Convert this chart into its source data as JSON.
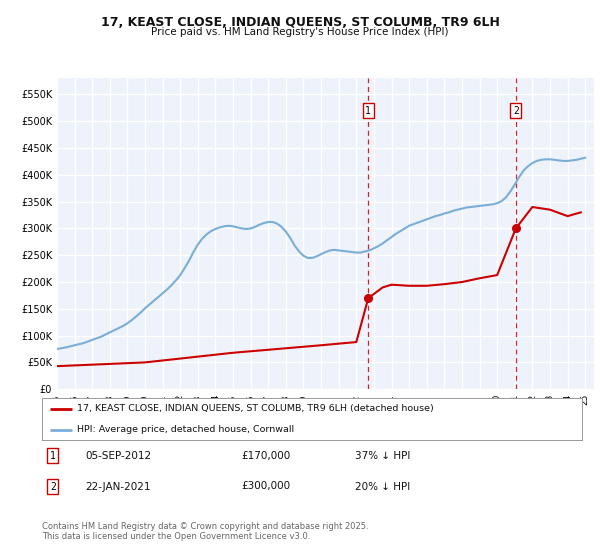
{
  "title": "17, KEAST CLOSE, INDIAN QUEENS, ST COLUMB, TR9 6LH",
  "subtitle": "Price paid vs. HM Land Registry's House Price Index (HPI)",
  "ylim": [
    0,
    580000
  ],
  "yticks": [
    0,
    50000,
    100000,
    150000,
    200000,
    250000,
    300000,
    350000,
    400000,
    450000,
    500000,
    550000
  ],
  "ytick_labels": [
    "£0",
    "£50K",
    "£100K",
    "£150K",
    "£200K",
    "£250K",
    "£300K",
    "£350K",
    "£400K",
    "£450K",
    "£500K",
    "£550K"
  ],
  "background_color": "#eef2fb",
  "grid_color": "#ffffff",
  "red_line_color": "#cc0000",
  "blue_line_color": "#7aaed6",
  "marker1_date_x": 2012.68,
  "marker1_price": 170000,
  "marker2_date_x": 2021.06,
  "marker2_price": 300000,
  "sale1_label": "05-SEP-2012",
  "sale1_price": "£170,000",
  "sale1_note": "37% ↓ HPI",
  "sale2_label": "22-JAN-2021",
  "sale2_price": "£300,000",
  "sale2_note": "20% ↓ HPI",
  "legend_line1": "17, KEAST CLOSE, INDIAN QUEENS, ST COLUMB, TR9 6LH (detached house)",
  "legend_line2": "HPI: Average price, detached house, Cornwall",
  "footer": "Contains HM Land Registry data © Crown copyright and database right 2025.\nThis data is licensed under the Open Government Licence v3.0.",
  "xlim_left": 1995.0,
  "xlim_right": 2025.5,
  "hpi_years": [
    1995.0,
    1995.25,
    1995.5,
    1995.75,
    1996.0,
    1996.25,
    1996.5,
    1996.75,
    1997.0,
    1997.25,
    1997.5,
    1997.75,
    1998.0,
    1998.25,
    1998.5,
    1998.75,
    1999.0,
    1999.25,
    1999.5,
    1999.75,
    2000.0,
    2000.25,
    2000.5,
    2000.75,
    2001.0,
    2001.25,
    2001.5,
    2001.75,
    2002.0,
    2002.25,
    2002.5,
    2002.75,
    2003.0,
    2003.25,
    2003.5,
    2003.75,
    2004.0,
    2004.25,
    2004.5,
    2004.75,
    2005.0,
    2005.25,
    2005.5,
    2005.75,
    2006.0,
    2006.25,
    2006.5,
    2006.75,
    2007.0,
    2007.25,
    2007.5,
    2007.75,
    2008.0,
    2008.25,
    2008.5,
    2008.75,
    2009.0,
    2009.25,
    2009.5,
    2009.75,
    2010.0,
    2010.25,
    2010.5,
    2010.75,
    2011.0,
    2011.25,
    2011.5,
    2011.75,
    2012.0,
    2012.25,
    2012.5,
    2012.75,
    2013.0,
    2013.25,
    2013.5,
    2013.75,
    2014.0,
    2014.25,
    2014.5,
    2014.75,
    2015.0,
    2015.25,
    2015.5,
    2015.75,
    2016.0,
    2016.25,
    2016.5,
    2016.75,
    2017.0,
    2017.25,
    2017.5,
    2017.75,
    2018.0,
    2018.25,
    2018.5,
    2018.75,
    2019.0,
    2019.25,
    2019.5,
    2019.75,
    2020.0,
    2020.25,
    2020.5,
    2020.75,
    2021.0,
    2021.25,
    2021.5,
    2021.75,
    2022.0,
    2022.25,
    2022.5,
    2022.75,
    2023.0,
    2023.25,
    2023.5,
    2023.75,
    2024.0,
    2024.25,
    2024.5,
    2024.75,
    2025.0
  ],
  "hpi_values": [
    75000,
    76500,
    78000,
    80000,
    82000,
    84000,
    86000,
    89000,
    92000,
    95000,
    98000,
    102000,
    106000,
    110000,
    114000,
    118000,
    123000,
    129000,
    136000,
    143000,
    151000,
    158000,
    165000,
    172000,
    179000,
    186000,
    194000,
    203000,
    213000,
    226000,
    240000,
    256000,
    270000,
    281000,
    289000,
    295000,
    299000,
    302000,
    304000,
    305000,
    304000,
    302000,
    300000,
    299000,
    300000,
    303000,
    307000,
    310000,
    312000,
    312000,
    309000,
    303000,
    294000,
    282000,
    268000,
    257000,
    249000,
    245000,
    245000,
    248000,
    252000,
    256000,
    259000,
    260000,
    259000,
    258000,
    257000,
    256000,
    255000,
    255000,
    257000,
    259000,
    263000,
    267000,
    272000,
    278000,
    284000,
    290000,
    295000,
    300000,
    305000,
    308000,
    311000,
    314000,
    317000,
    320000,
    323000,
    325000,
    328000,
    330000,
    333000,
    335000,
    337000,
    339000,
    340000,
    341000,
    342000,
    343000,
    344000,
    345000,
    347000,
    351000,
    358000,
    369000,
    382000,
    396000,
    408000,
    416000,
    422000,
    426000,
    428000,
    429000,
    429000,
    428000,
    427000,
    426000,
    426000,
    427000,
    428000,
    430000,
    432000
  ],
  "property_years": [
    1995.0,
    2012.0,
    2012.68,
    2013.5,
    2014.0,
    2015.0,
    2016.0,
    2017.0,
    2018.0,
    2019.0,
    2020.0,
    2021.06,
    2022.0,
    2023.0,
    2024.0,
    2024.75
  ],
  "property_values": [
    43000,
    88000,
    170000,
    190000,
    195000,
    193000,
    193000,
    196000,
    200000,
    207000,
    213000,
    300000,
    340000,
    335000,
    323000,
    330000
  ],
  "property_flat_years": [
    1995.0,
    2012.0
  ],
  "property_flat_values": [
    43000,
    88000
  ]
}
